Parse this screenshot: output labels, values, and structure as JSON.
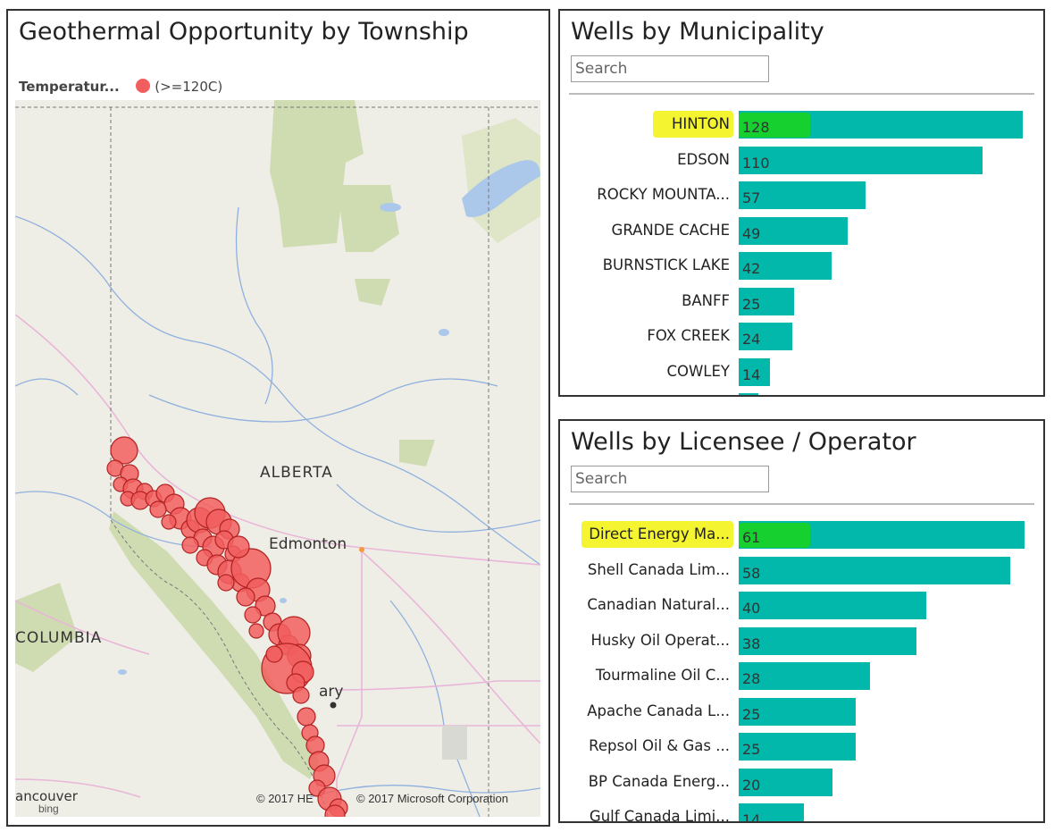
{
  "map_panel": {
    "title": "Geothermal Opportunity by Township",
    "legend_title": "Temperatur...",
    "legend_item": "(>=120C)",
    "legend_color": "#f25e5e",
    "labels": {
      "province": "ALBERTA",
      "city": "Edmonton",
      "columbia": "COLUMBIA",
      "city_partial": "ary",
      "vancouver_partial": "ancouver"
    },
    "copyright_here": "© 2017 HE",
    "copyright_ms": "© 2017 Microsoft Corporation",
    "bing_logo": "bing"
  },
  "municipality_panel": {
    "title": "Wells by Municipality",
    "search_placeholder": "Search",
    "bar_color": "#01b8aa",
    "highlighted": "HINTON",
    "max": 128,
    "rows": [
      {
        "label": "HINTON",
        "value": 128
      },
      {
        "label": "EDSON",
        "value": 110
      },
      {
        "label": "ROCKY MOUNTA...",
        "value": 57
      },
      {
        "label": "GRANDE CACHE",
        "value": 49
      },
      {
        "label": "BURNSTICK LAKE",
        "value": 42
      },
      {
        "label": "BANFF",
        "value": 25
      },
      {
        "label": "FOX CREEK",
        "value": 24
      },
      {
        "label": "COWLEY",
        "value": 14
      }
    ]
  },
  "licensee_panel": {
    "title": "Wells by Licensee / Operator",
    "search_placeholder": "Search",
    "bar_color": "#01b8aa",
    "highlighted": "Direct Energy Ma...",
    "max": 61,
    "rows": [
      {
        "label": "Direct Energy Ma...",
        "value": 61
      },
      {
        "label": "Shell Canada Lim...",
        "value": 58
      },
      {
        "label": "Canadian Natural...",
        "value": 40
      },
      {
        "label": "Husky Oil Operat...",
        "value": 38
      },
      {
        "label": "Tourmaline Oil C...",
        "value": 28
      },
      {
        "label": "Apache Canada L...",
        "value": 25
      },
      {
        "label": "Repsol Oil & Gas ...",
        "value": 25
      },
      {
        "label": "BP Canada Energ...",
        "value": 20
      },
      {
        "label": "Gulf Canada Limi...",
        "value": 14
      }
    ]
  }
}
